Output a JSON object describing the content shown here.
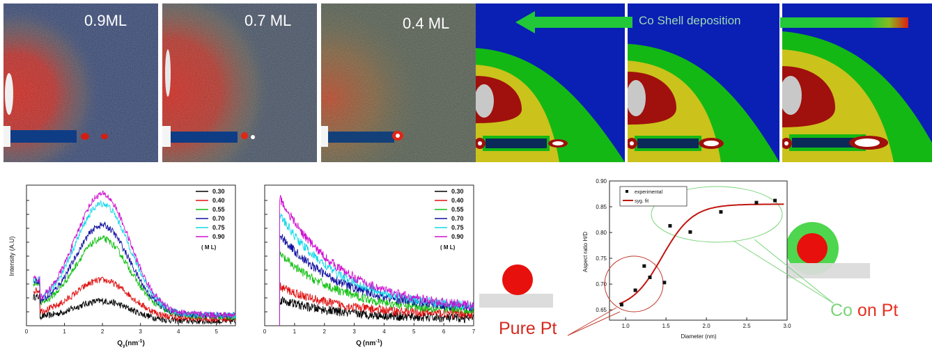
{
  "tiles_left": {
    "labels": [
      "0.9ML",
      "0.7 ML",
      "0.4 ML"
    ]
  },
  "tiles_right": {
    "deposition_label": "Co Shell deposition"
  },
  "colors": {
    "noise_blue": "#2d3f6e",
    "lobe_red": "#c81e14",
    "map_blue": "#0a1fb4",
    "map_green": "#14b814",
    "map_yellow": "#cbc21c",
    "map_red": "#a0100c",
    "pure_pt": "#d42a20",
    "co_shell": "#7ad47a"
  },
  "annotations": {
    "pure_pt": "Pure Pt",
    "co": "Co",
    "on_pt": "on Pt"
  },
  "chart_data": [
    {
      "type": "line",
      "panel": "left",
      "ylabel": "Intensity (A.U)",
      "xlabel": "Q",
      "xlabel_sub": "y",
      "xlabel_unit": "(nm",
      "xlabel_sup": "-1",
      "xlabel_tail": ")",
      "xlim": [
        0,
        5.5
      ],
      "xticks": [
        0,
        1,
        2,
        3,
        4,
        5
      ],
      "legend_title": "( M L)",
      "legend_position": "top-right",
      "peak_x": 2.0,
      "series": [
        {
          "name": "0.30",
          "color": "#000000",
          "peak": 0.17,
          "base": 0.12
        },
        {
          "name": "0.40",
          "color": "#e01010",
          "peak": 0.32,
          "base": 0.18
        },
        {
          "name": "0.55",
          "color": "#10c010",
          "peak": 0.62,
          "base": 0.25
        },
        {
          "name": "0.70",
          "color": "#1010a0",
          "peak": 0.72,
          "base": 0.27
        },
        {
          "name": "0.75",
          "color": "#10d8e8",
          "peak": 0.88,
          "base": 0.28
        },
        {
          "name": "0.90",
          "color": "#d010d0",
          "peak": 0.95,
          "base": 0.29
        }
      ]
    },
    {
      "type": "line",
      "panel": "middle",
      "xlabel": "Q",
      "xlabel_unit": "(nm",
      "xlabel_sup": "-1",
      "xlabel_tail": ")",
      "xlim": [
        0,
        7
      ],
      "xticks": [
        0,
        1,
        2,
        3,
        4,
        5,
        6,
        7
      ],
      "legend_title": "( M L)",
      "legend_position": "top-right",
      "series": [
        {
          "name": "0.30",
          "color": "#000000",
          "start": 0.2,
          "end": 0.05
        },
        {
          "name": "0.40",
          "color": "#e01010",
          "start": 0.3,
          "end": 0.08
        },
        {
          "name": "0.55",
          "color": "#10c010",
          "start": 0.55,
          "end": 0.1
        },
        {
          "name": "0.70",
          "color": "#1010a0",
          "start": 0.7,
          "end": 0.12
        },
        {
          "name": "0.75",
          "color": "#10d8e8",
          "start": 0.85,
          "end": 0.12
        },
        {
          "name": "0.90",
          "color": "#d010d0",
          "start": 0.98,
          "end": 0.12
        }
      ]
    },
    {
      "type": "scatter",
      "panel": "right",
      "xlabel": "Diameter (nm)",
      "ylabel": "Aspect ratio H/D",
      "xlim": [
        0.8,
        3.0
      ],
      "ylim": [
        0.63,
        0.9
      ],
      "xticks": [
        "1.0",
        "1.5",
        "2.0",
        "2.5",
        "3.0"
      ],
      "yticks": [
        "0.65",
        "0.70",
        "0.75",
        "0.80",
        "0.85",
        "0.90"
      ],
      "legend": [
        "experimental",
        "syg. fit"
      ],
      "legend_position": "top-left",
      "points": [
        {
          "x": 0.95,
          "y": 0.66
        },
        {
          "x": 1.12,
          "y": 0.688
        },
        {
          "x": 1.23,
          "y": 0.735
        },
        {
          "x": 1.3,
          "y": 0.713
        },
        {
          "x": 1.48,
          "y": 0.703
        },
        {
          "x": 1.55,
          "y": 0.813
        },
        {
          "x": 1.8,
          "y": 0.801
        },
        {
          "x": 2.18,
          "y": 0.84
        },
        {
          "x": 2.62,
          "y": 0.858
        },
        {
          "x": 2.85,
          "y": 0.862
        }
      ],
      "fit": {
        "low": 0.65,
        "high": 0.855,
        "center": 1.45,
        "width": 0.19
      }
    }
  ]
}
